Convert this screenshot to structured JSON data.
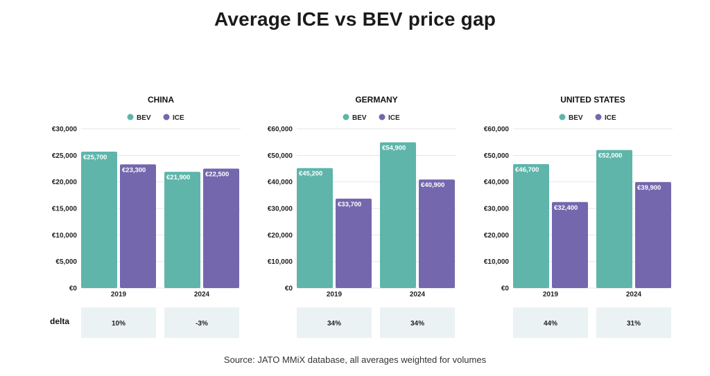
{
  "title": "Average ICE vs BEV price gap",
  "source": "Source: JATO MMiX database, all averages weighted for volumes",
  "delta_label": "delta",
  "colors": {
    "BEV": "#5fb5aa",
    "ICE": "#7567ad",
    "delta_bg": "#eaf2f4",
    "grid": "#e6e6e6"
  },
  "legend": [
    "BEV",
    "ICE"
  ],
  "chart_data": [
    {
      "type": "bar",
      "title": "CHINA",
      "categories": [
        "2019",
        "2024"
      ],
      "series": [
        {
          "name": "BEV",
          "values": [
            25700,
            21900
          ],
          "labels": [
            "€25,700",
            "€21,900"
          ]
        },
        {
          "name": "ICE",
          "values": [
            23300,
            22500
          ],
          "labels": [
            "€23,300",
            "€22,500"
          ]
        }
      ],
      "ylim": [
        0,
        30000
      ],
      "yticks": [
        "€0",
        "€5,000",
        "€10,000",
        "€15,000",
        "€20,000",
        "€25,000",
        "€30,000"
      ],
      "delta": [
        "10%",
        "-3%"
      ],
      "grid": true,
      "legend_position": "top-center"
    },
    {
      "type": "bar",
      "title": "GERMANY",
      "categories": [
        "2019",
        "2024"
      ],
      "series": [
        {
          "name": "BEV",
          "values": [
            45200,
            54900
          ],
          "labels": [
            "€45,200",
            "€54,900"
          ]
        },
        {
          "name": "ICE",
          "values": [
            33700,
            40900
          ],
          "labels": [
            "€33,700",
            "€40,900"
          ]
        }
      ],
      "ylim": [
        0,
        60000
      ],
      "yticks": [
        "€0",
        "€10,000",
        "€20,000",
        "€30,000",
        "€40,000",
        "€50,000",
        "€60,000"
      ],
      "delta": [
        "34%",
        "34%"
      ],
      "grid": true,
      "legend_position": "top-center"
    },
    {
      "type": "bar",
      "title": "UNITED STATES",
      "categories": [
        "2019",
        "2024"
      ],
      "series": [
        {
          "name": "BEV",
          "values": [
            46700,
            52000
          ],
          "labels": [
            "€46,700",
            "€52,000"
          ]
        },
        {
          "name": "ICE",
          "values": [
            32400,
            39900
          ],
          "labels": [
            "€32,400",
            "€39,900"
          ]
        }
      ],
      "ylim": [
        0,
        60000
      ],
      "yticks": [
        "€0",
        "€10,000",
        "€20,000",
        "€30,000",
        "€40,000",
        "€50,000",
        "€60,000"
      ],
      "delta": [
        "44%",
        "31%"
      ],
      "grid": true,
      "legend_position": "top-center"
    }
  ]
}
